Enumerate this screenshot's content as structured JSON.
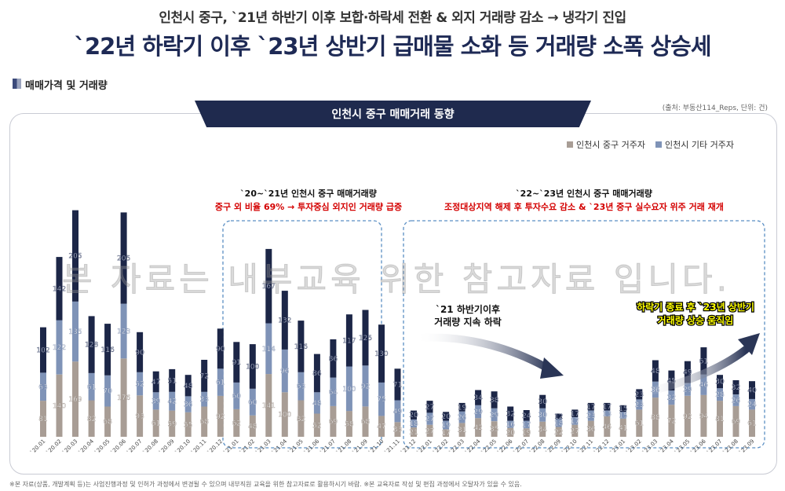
{
  "header": {
    "subtitle": "인천시 중구, `21년 하반기 이후 보합·하락세 전환 & 외지 거래량 감소 → 냉각기 진입",
    "title": "`22년 하락기 이후 `23년 상반기 급매물 소화 등 거래량 소폭 상승세"
  },
  "section_label": "매매가격 및 거래량",
  "panel_title": "인천시 중구 매매거래 동향",
  "source": "(출처: 부동산114_Reps, 단위: 건)",
  "watermark": "본 자료는 내부교육 위한 참고자료 입니다.",
  "footer": "※본 자료(상품, 개발계획 등)는 사업진행과정 및 인허가 과정에서 변경될 수 있으며 내부직원 교육을 위한 참고자료로 활용하시기 바람. ※본 교육자료 작성 및 편집 과정에서 오탈자가 있을 수 있음.",
  "annotations": {
    "box1_title": "`20~`21년 인천시 중구 매매거래량",
    "box1_text": "중구 외 비율 69% → 투자중심 외지인 거래량 급증",
    "box2_title": "`22~`23년 인천시 중구 매매거래량",
    "box2_text": "조정대상지역 해제 후 투자수요 감소 & `23년 중구 실수요자 위주 거래 재개",
    "down_line1": "`21 하반기이후",
    "down_line2": "거래량 지속 하락",
    "up_line1": "하락기 종료 후 `23년 상반기",
    "up_line2": "거래량 상승 움직임"
  },
  "colors": {
    "series1": "#a89d95",
    "series2": "#7f93b7",
    "series3": "#1c2647",
    "accent_red": "#d40000",
    "highlight": "#ffff00",
    "dash_box": "#5b8fc4"
  },
  "chart_data": {
    "type": "bar",
    "stacked": true,
    "categories": [
      "`20.01",
      "`20.02",
      "`20.03",
      "`20.04",
      "`20.05",
      "`20.06",
      "`20.07",
      "`20.08",
      "`20.09",
      "`20.10",
      "`20.11",
      "`20.12",
      "`21.01",
      "`21.02",
      "`21.03",
      "`21.04",
      "`21.05",
      "`21.06",
      "`21.07",
      "`21.08",
      "`21.09",
      "`21.10",
      "`21.11",
      "`21.12",
      "`22.01",
      "`22.02",
      "`22.03",
      "`22.04",
      "`22.05",
      "`22.06",
      "`22.07",
      "`22.08",
      "`22.09",
      "`22.10",
      "`22.11",
      "`22.12",
      "`23.01",
      "`23.02",
      "`23.03",
      "`23.04",
      "`23.05",
      "`23.06",
      "`23.07",
      "`23.08",
      "`23.09"
    ],
    "series": [
      {
        "name": "인천시 중구 거주자",
        "values": [
          81,
          140,
          169,
          82,
          68,
          176,
          93,
          61,
          59,
          55,
          68,
          92,
          62,
          48,
          141,
          100,
          82,
          52,
          69,
          58,
          68,
          47,
          33,
          21,
          27,
          17,
          31,
          42,
          35,
          20,
          19,
          34,
          22,
          27,
          36,
          46,
          41,
          61,
          88,
          72,
          92,
          94,
          81,
          69,
          61
        ]
      },
      {
        "name": "인천시 기타 거주자",
        "values": [
          63,
          122,
          135,
          61,
          70,
          123,
          52,
          39,
          42,
          36,
          33,
          61,
          60,
          60,
          114,
          96,
          63,
          48,
          64,
          100,
          92,
          75,
          49,
          18,
          27,
          19,
          26,
          29,
          29,
          16,
          17,
          30,
          18,
          17,
          23,
          13,
          15,
          23,
          36,
          32,
          29,
          46,
          28,
          26,
          24
        ]
      },
      {
        "name": "",
        "values": [
          102,
          142,
          205,
          128,
          116,
          205,
          90,
          47,
          51,
          48,
          72,
          90,
          91,
          100,
          167,
          132,
          116,
          86,
          86,
          117,
          125,
          130,
          71,
          20,
          27,
          20,
          19,
          34,
          38,
          32,
          24,
          30,
          12,
          17,
          17,
          17,
          15,
          23,
          48,
          45,
          49,
          61,
          30,
          32,
          40
        ]
      }
    ],
    "ylim": [
      0,
      560
    ],
    "legend": "top-right"
  }
}
